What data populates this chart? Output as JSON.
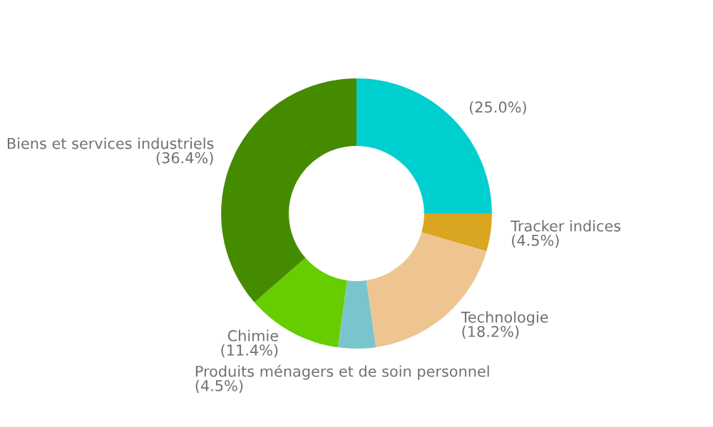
{
  "chart_data": {
    "type": "donut",
    "categories": [
      null,
      "Tracker indices",
      "Technologie",
      "Produits ménagers et de soin personnel",
      "Chimie",
      "Biens et services industriels"
    ],
    "values": [
      25.0,
      4.5,
      18.2,
      4.5,
      11.4,
      36.4
    ],
    "value_labels": [
      "(25.0%)",
      "(4.5%)",
      "(18.2%)",
      "(4.5%)",
      "(11.4%)",
      "(36.4%)"
    ],
    "colors": [
      "#00cfcf",
      "#daa520",
      "#eec591",
      "#7ac5cd",
      "#66cd00",
      "#458b00"
    ]
  }
}
